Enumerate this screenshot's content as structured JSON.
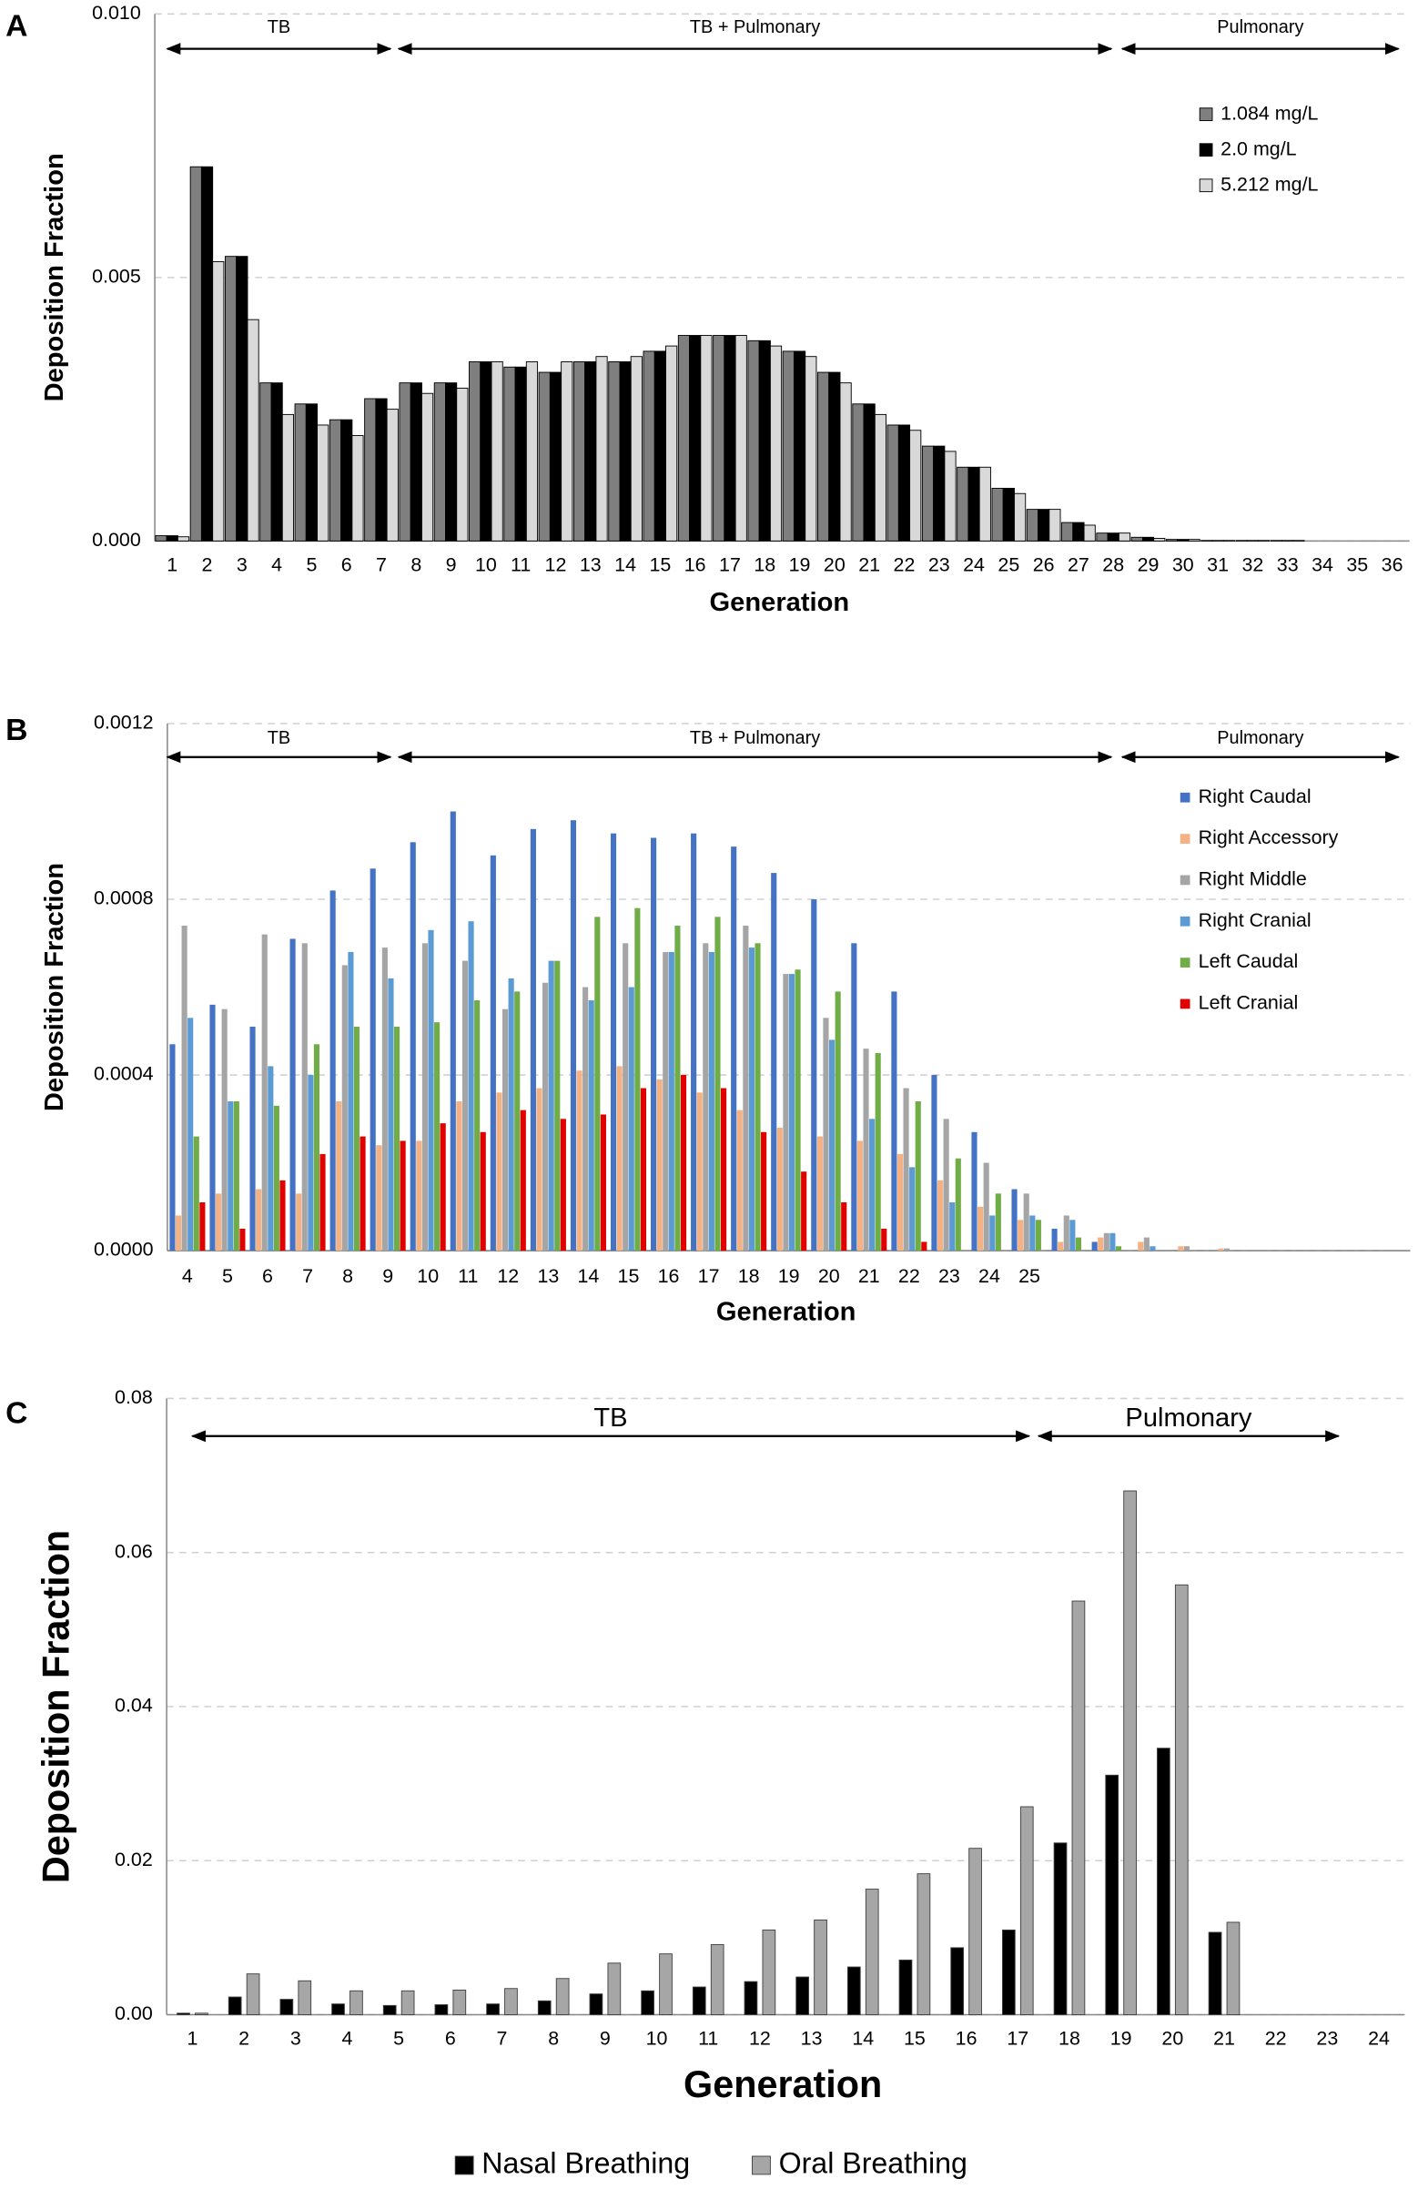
{
  "chart_data": [
    {
      "type": "bar",
      "label": "A",
      "x_label": "Generation",
      "y_label": "Deposition Fraction",
      "grid": true,
      "annotations": [
        "TB",
        "TB + Pulmonary",
        "Pulmonary"
      ],
      "categories": [
        "1",
        "2",
        "3",
        "4",
        "5",
        "6",
        "7",
        "8",
        "9",
        "10",
        "11",
        "12",
        "13",
        "14",
        "15",
        "16",
        "17",
        "18",
        "19",
        "20",
        "21",
        "22",
        "23",
        "24",
        "25",
        "26",
        "27",
        "28",
        "29",
        "30",
        "31",
        "32",
        "33",
        "34",
        "35",
        "36"
      ],
      "ylim": [
        0,
        0.01
      ],
      "yticks": [
        {
          "value": 0,
          "label": "0.000"
        },
        {
          "value": 0.005,
          "label": "0.005"
        },
        {
          "value": 0.01,
          "label": "0.010"
        }
      ],
      "series": [
        {
          "name": "1.084 mg/L",
          "color": "#7f7f7f",
          "values": [
            0.0001,
            0.0071,
            0.0054,
            0.003,
            0.0026,
            0.0023,
            0.0027,
            0.003,
            0.003,
            0.0034,
            0.0033,
            0.0032,
            0.0034,
            0.0034,
            0.0036,
            0.0039,
            0.0039,
            0.0038,
            0.0036,
            0.0032,
            0.0026,
            0.0022,
            0.0018,
            0.0014,
            0.001,
            0.0006,
            0.00035,
            0.00015,
            7e-05,
            3e-05,
            1e-05,
            1e-05,
            1e-05,
            0,
            0,
            0
          ]
        },
        {
          "name": "2.0 mg/L",
          "color": "#000000",
          "values": [
            0.0001,
            0.0071,
            0.0054,
            0.003,
            0.0026,
            0.0023,
            0.0027,
            0.003,
            0.003,
            0.0034,
            0.0033,
            0.0032,
            0.0034,
            0.0034,
            0.0036,
            0.0039,
            0.0039,
            0.0038,
            0.0036,
            0.0032,
            0.0026,
            0.0022,
            0.0018,
            0.0014,
            0.001,
            0.0006,
            0.00035,
            0.00015,
            7e-05,
            3e-05,
            1e-05,
            1e-05,
            1e-05,
            0,
            0,
            0
          ]
        },
        {
          "name": "5.212 mg/L",
          "color": "#d9d9d9",
          "values": [
            8e-05,
            0.0053,
            0.0042,
            0.0024,
            0.0022,
            0.002,
            0.0025,
            0.0028,
            0.0029,
            0.0034,
            0.0034,
            0.0034,
            0.0035,
            0.0035,
            0.0037,
            0.0039,
            0.0039,
            0.0037,
            0.0035,
            0.003,
            0.0024,
            0.0021,
            0.0017,
            0.0014,
            0.0009,
            0.0006,
            0.0003,
            0.00015,
            5e-05,
            3e-05,
            1e-05,
            1e-05,
            1e-05,
            0,
            0,
            0
          ]
        }
      ]
    },
    {
      "type": "bar",
      "label": "B",
      "x_label": "Generation",
      "y_label": "Deposition Fraction",
      "grid": true,
      "annotations": [
        "TB",
        "TB + Pulmonary",
        "Pulmonary"
      ],
      "categories": [
        "4",
        "5",
        "6",
        "7",
        "8",
        "9",
        "10",
        "11",
        "12",
        "13",
        "14",
        "15",
        "16",
        "17",
        "18",
        "19",
        "20",
        "21",
        "22",
        "23",
        "24",
        "25",
        null,
        null,
        null,
        null,
        null,
        null,
        null,
        null,
        null
      ],
      "ylim": [
        0,
        0.0012
      ],
      "yticks": [
        {
          "value": 0,
          "label": "0.0000"
        },
        {
          "value": 0.0004,
          "label": "0.0004"
        },
        {
          "value": 0.0008,
          "label": "0.0008"
        },
        {
          "value": 0.0012,
          "label": "0.0012"
        }
      ],
      "series": [
        {
          "name": "Right Caudal",
          "color": "#4472c4",
          "values": [
            0.00047,
            0.00056,
            0.00051,
            0.00071,
            0.00082,
            0.00087,
            0.00093,
            0.001,
            0.0009,
            0.00096,
            0.00098,
            0.00095,
            0.00094,
            0.00095,
            0.00092,
            0.00086,
            0.0008,
            0.0007,
            0.00059,
            0.0004,
            0.00027,
            0.00014,
            5e-05,
            2e-05,
            0,
            0,
            0,
            0,
            0,
            0,
            0
          ]
        },
        {
          "name": "Right Accessory",
          "color": "#f4b183",
          "values": [
            8e-05,
            0.00013,
            0.00014,
            0.00013,
            0.00034,
            0.00024,
            0.00025,
            0.00034,
            0.00036,
            0.00037,
            0.00041,
            0.00042,
            0.00039,
            0.00036,
            0.00032,
            0.00028,
            0.00026,
            0.00025,
            0.00022,
            0.00016,
            0.0001,
            7e-05,
            2e-05,
            3e-05,
            2e-05,
            1e-05,
            5e-06,
            0,
            0,
            0,
            0
          ]
        },
        {
          "name": "Right Middle",
          "color": "#a5a5a5",
          "values": [
            0.00074,
            0.00055,
            0.00072,
            0.0007,
            0.00065,
            0.00069,
            0.0007,
            0.00066,
            0.00055,
            0.00061,
            0.0006,
            0.0007,
            0.00068,
            0.0007,
            0.00074,
            0.00063,
            0.00053,
            0.00046,
            0.00037,
            0.0003,
            0.0002,
            0.00013,
            8e-05,
            4e-05,
            3e-05,
            1e-05,
            5e-06,
            0,
            0,
            0,
            0
          ]
        },
        {
          "name": "Right Cranial",
          "color": "#5b9bd5",
          "values": [
            0.00053,
            0.00034,
            0.00042,
            0.0004,
            0.00068,
            0.00062,
            0.00073,
            0.00075,
            0.00062,
            0.00066,
            0.00057,
            0.0006,
            0.00068,
            0.00068,
            0.00069,
            0.00063,
            0.00048,
            0.0003,
            0.00019,
            0.00011,
            8e-05,
            8e-05,
            7e-05,
            4e-05,
            1e-05,
            0,
            0,
            0,
            0,
            0,
            0
          ]
        },
        {
          "name": "Left Caudal",
          "color": "#70ad47",
          "values": [
            0.00026,
            0.00034,
            0.00033,
            0.00047,
            0.00051,
            0.00051,
            0.00052,
            0.00057,
            0.00059,
            0.00066,
            0.00076,
            0.00078,
            0.00074,
            0.00076,
            0.0007,
            0.00064,
            0.00059,
            0.00045,
            0.00034,
            0.00021,
            0.00013,
            7e-05,
            3e-05,
            1e-05,
            0,
            0,
            0,
            0,
            0,
            0,
            0
          ]
        },
        {
          "name": "Left Cranial",
          "color": "#e00000",
          "values": [
            0.00011,
            5e-05,
            0.00016,
            0.00022,
            0.00026,
            0.00025,
            0.00029,
            0.00027,
            0.00032,
            0.0003,
            0.00031,
            0.00037,
            0.0004,
            0.00037,
            0.00027,
            0.00018,
            0.00011,
            5e-05,
            2e-05,
            0,
            0,
            0,
            0,
            0,
            0,
            0,
            0,
            0,
            0,
            0,
            0
          ]
        }
      ]
    },
    {
      "type": "bar",
      "label": "C",
      "x_label": "Generation",
      "y_label": "Deposition Fraction",
      "grid": true,
      "annotations": [
        "TB",
        "Pulmonary"
      ],
      "categories": [
        "1",
        "2",
        "3",
        "4",
        "5",
        "6",
        "7",
        "8",
        "9",
        "10",
        "11",
        "12",
        "13",
        "14",
        "15",
        "16",
        "17",
        "18",
        "19",
        "20",
        "21",
        "22",
        "23",
        "24"
      ],
      "ylim": [
        0,
        0.08
      ],
      "yticks": [
        {
          "value": 0,
          "label": "0.00"
        },
        {
          "value": 0.02,
          "label": "0.02"
        },
        {
          "value": 0.04,
          "label": "0.04"
        },
        {
          "value": 0.06,
          "label": "0.06"
        },
        {
          "value": 0.08,
          "label": "0.08"
        }
      ],
      "series": [
        {
          "name": "Nasal Breathing",
          "color": "#000000",
          "values": [
            0.0002,
            0.0023,
            0.002,
            0.0014,
            0.0012,
            0.0013,
            0.0014,
            0.0018,
            0.0027,
            0.0031,
            0.0036,
            0.0043,
            0.0049,
            0.0062,
            0.0071,
            0.0087,
            0.011,
            0.0223,
            0.0311,
            0.0346,
            0.0107,
            0,
            0,
            0
          ]
        },
        {
          "name": "Oral Breathing",
          "color": "#a6a6a6",
          "values": [
            0.0002,
            0.0053,
            0.0044,
            0.0031,
            0.0031,
            0.0032,
            0.0034,
            0.0047,
            0.0067,
            0.0079,
            0.0091,
            0.011,
            0.0123,
            0.0163,
            0.0183,
            0.0216,
            0.027,
            0.0537,
            0.068,
            0.0558,
            0.012,
            0,
            0,
            0
          ]
        }
      ]
    }
  ]
}
